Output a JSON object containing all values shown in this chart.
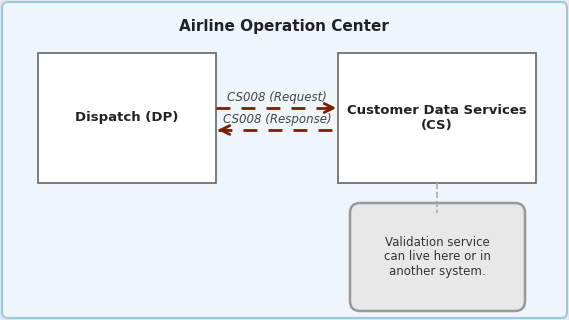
{
  "title": "Airline Operation Center",
  "title_fontsize": 11,
  "title_fontweight": "bold",
  "outer_box_edge_color": "#a0c8e0",
  "outer_box_bg": "#eef6fb",
  "box_edge_color": "#666666",
  "box_fill": "#ffffff",
  "dispatch_label": "Dispatch (DP)",
  "cs_label": "Customer Data Services\n(CS)",
  "validation_label": "Validation service\ncan live here or in\nanother system.",
  "validation_fill": "#e8e8e8",
  "validation_edge": "#999999",
  "arrow_color": "#7a2000",
  "req_label": "CS008 (Request)",
  "resp_label": "CS008 (Response)",
  "label_fontstyle": "italic",
  "label_fontsize": 8.5,
  "dashed_line_color": "#aaaaaa",
  "background_color": "#f0f0f0",
  "fig_bg": "#e8e8e8"
}
